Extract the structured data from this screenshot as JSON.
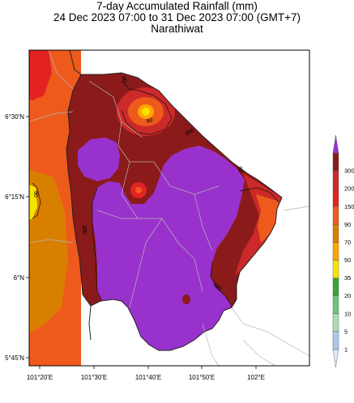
{
  "title": {
    "line1": "7-day Accumulated Rainfall (mm)",
    "line2": "24 Dec 2023 07:00 to 31 Dec 2023 07:00 (GMT+7)",
    "line3": "Narathiwat"
  },
  "axes": {
    "lat_ticks": [
      "6°30'N",
      "6°15'N",
      "6°N",
      "5°45'N"
    ],
    "lon_ticks": [
      "101°20'E",
      "101°30'E",
      "101°40'E",
      "101°50'E",
      "102°E"
    ]
  },
  "colorbar": {
    "levels": [
      "1",
      "5",
      "10",
      "20",
      "35",
      "50",
      "70",
      "90",
      "150",
      "200",
      "300"
    ],
    "colors": [
      "#dbe8f7",
      "#aac8ee",
      "#a9dcb5",
      "#6fc47a",
      "#3aa23a",
      "#f5e400",
      "#ffa500",
      "#d97f00",
      "#ee5a1c",
      "#e32222",
      "#cc2a2a",
      "#8b1a1a",
      "#9932cc"
    ]
  },
  "contour_labels": [
    "90",
    "90",
    "90",
    "300",
    "300",
    "300",
    "90"
  ],
  "colors": {
    "purple": "#9932cc",
    "darkred": "#8b1a1a",
    "red": "#cc2a2a",
    "orange": "#ee5a1c",
    "darkorange": "#d97f00",
    "yellow": "#f5e400"
  }
}
